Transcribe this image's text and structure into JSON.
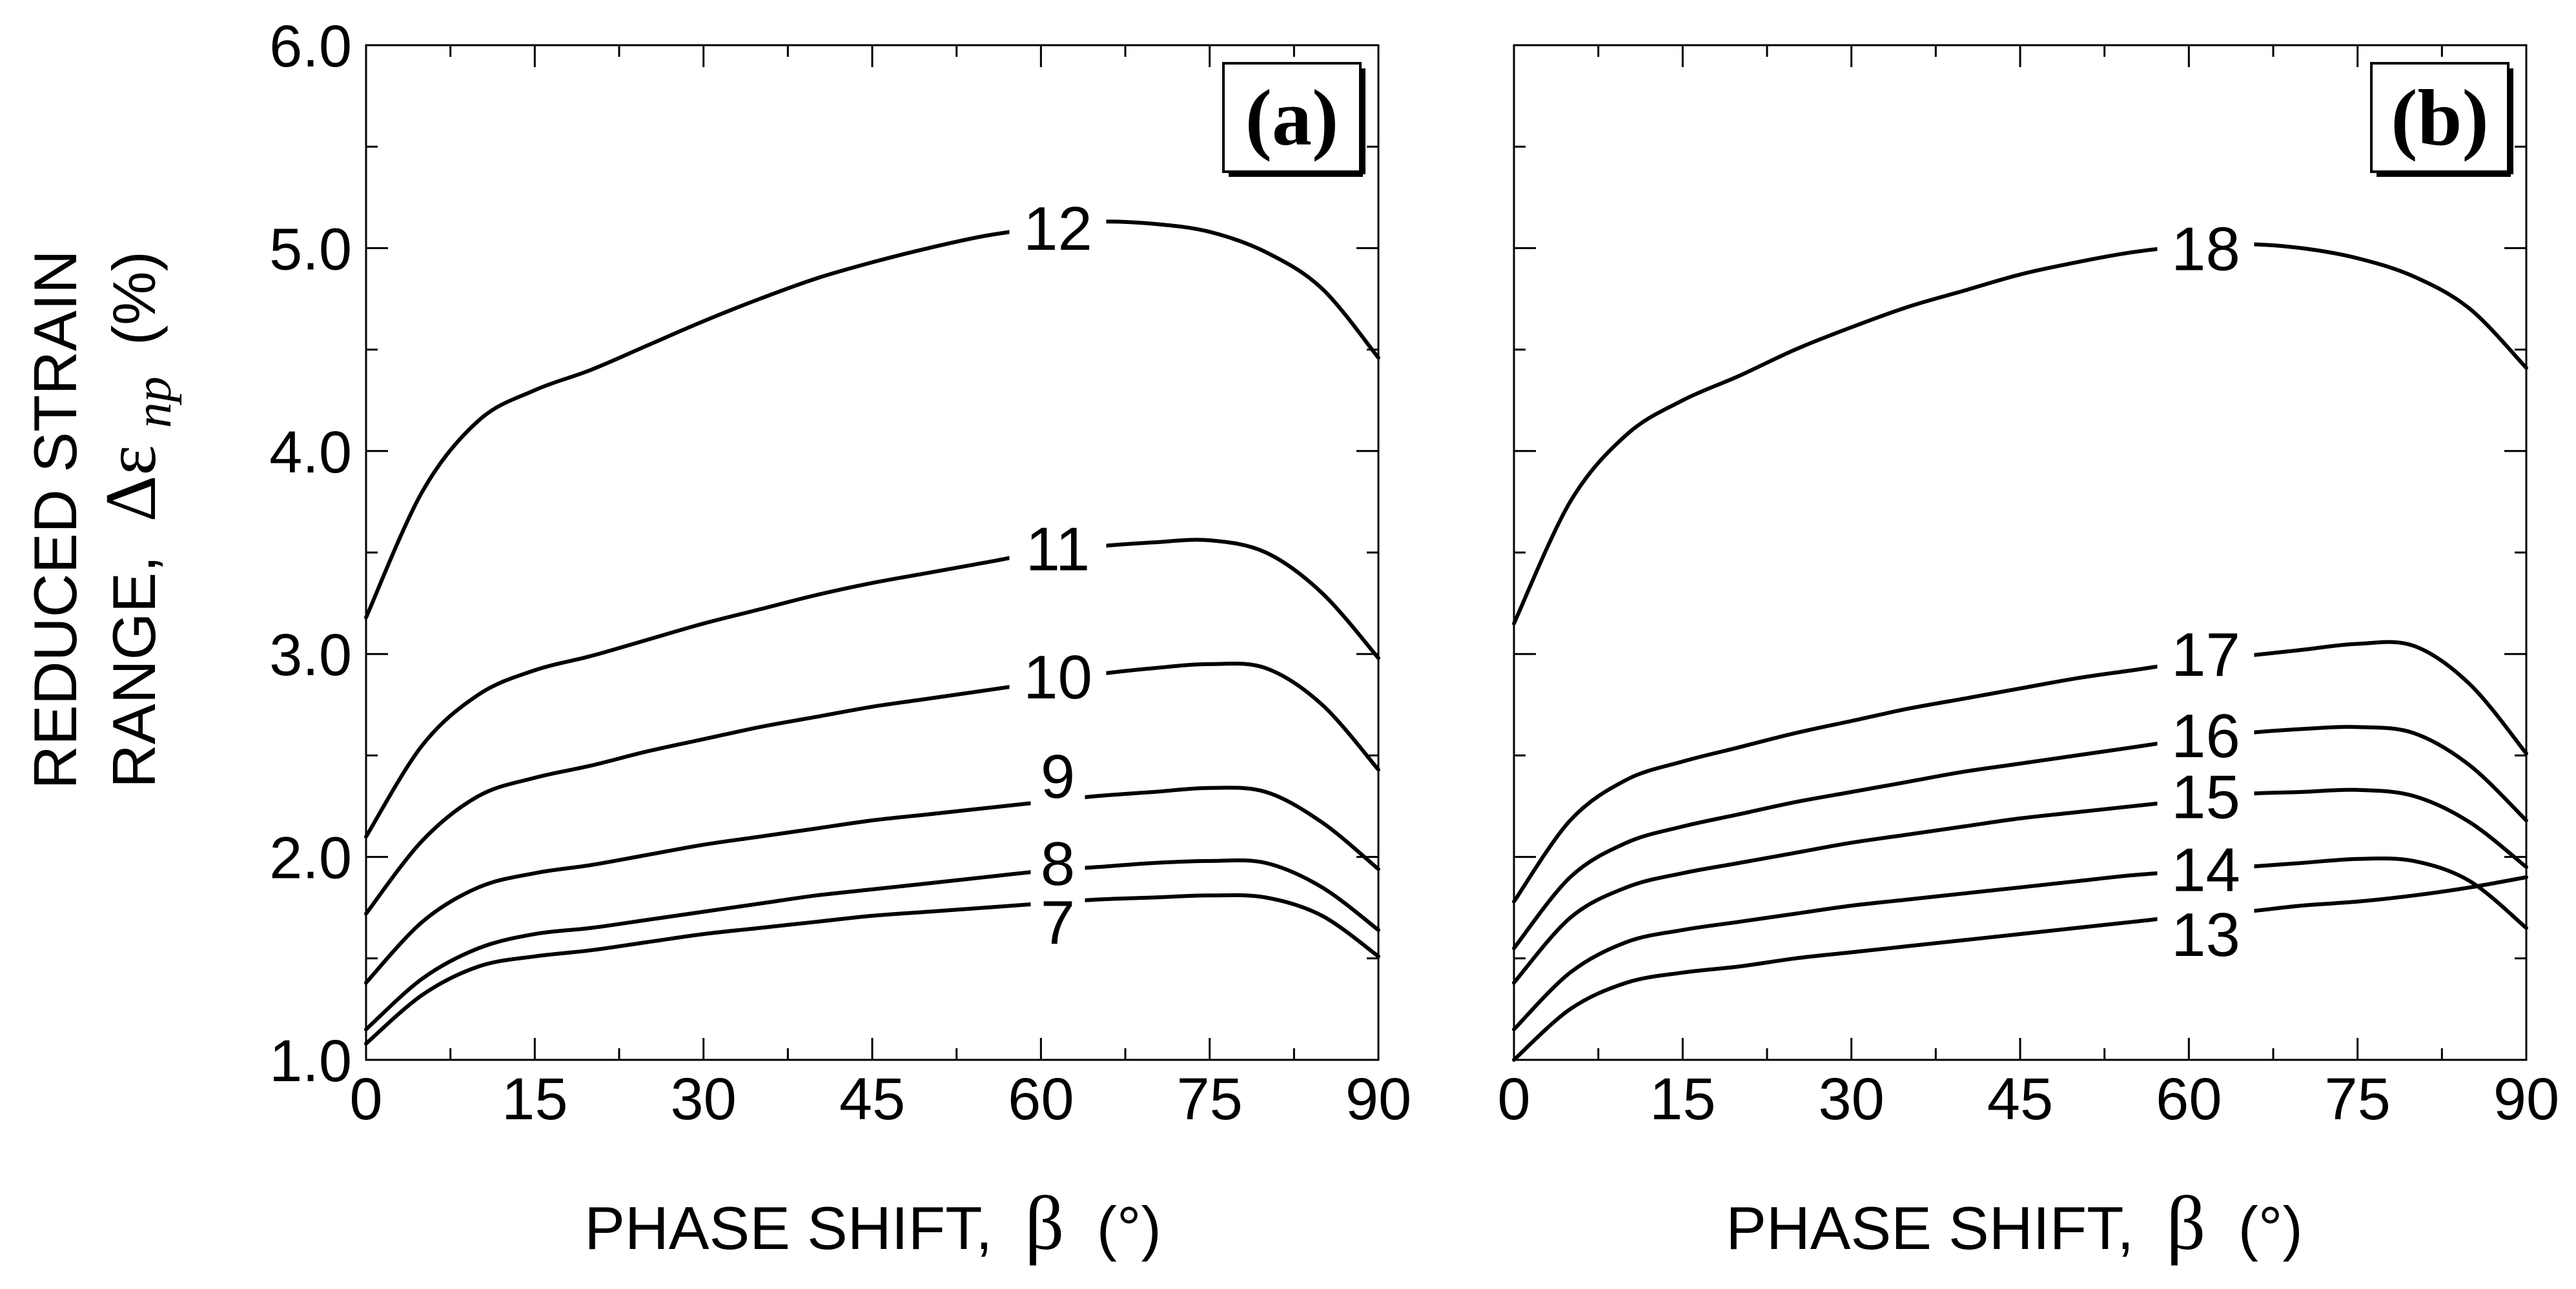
{
  "chart_data": [
    {
      "id": "a",
      "type": "line",
      "panel_label": "(a)",
      "xlabel": "PHASE SHIFT,",
      "xlabel_symbol": "β",
      "xlabel_unit": "(°)",
      "ylabel_line1": "REDUCED STRAIN",
      "ylabel_line2_prefix": "RANGE,",
      "ylabel_symbol": "Δε",
      "ylabel_subscript": "np",
      "ylabel_unit": "(%)",
      "xlim": [
        0,
        90
      ],
      "ylim": [
        1.0,
        6.0
      ],
      "xticks": [
        "0",
        "15",
        "30",
        "45",
        "60",
        "75",
        "90"
      ],
      "yticks": [
        "1.0",
        "2.0",
        "3.0",
        "4.0",
        "5.0",
        "6.0"
      ],
      "x": [
        0,
        5,
        10,
        15,
        20,
        25,
        30,
        35,
        40,
        45,
        50,
        55,
        60,
        65,
        70,
        75,
        80,
        85,
        90
      ],
      "series": [
        {
          "name": "12",
          "values": [
            3.18,
            3.8,
            4.15,
            4.3,
            4.4,
            4.52,
            4.64,
            4.75,
            4.85,
            4.93,
            5.0,
            5.06,
            5.1,
            5.13,
            5.12,
            5.08,
            4.98,
            4.8,
            4.46
          ]
        },
        {
          "name": "11",
          "values": [
            2.1,
            2.55,
            2.8,
            2.92,
            2.99,
            3.07,
            3.15,
            3.22,
            3.29,
            3.35,
            3.4,
            3.45,
            3.5,
            3.53,
            3.55,
            3.56,
            3.5,
            3.3,
            2.98
          ]
        },
        {
          "name": "10",
          "values": [
            1.72,
            2.08,
            2.3,
            2.39,
            2.45,
            2.52,
            2.58,
            2.64,
            2.69,
            2.74,
            2.78,
            2.82,
            2.86,
            2.9,
            2.93,
            2.95,
            2.93,
            2.75,
            2.43
          ]
        },
        {
          "name": "9",
          "values": [
            1.38,
            1.68,
            1.85,
            1.92,
            1.96,
            2.01,
            2.06,
            2.1,
            2.14,
            2.18,
            2.21,
            2.24,
            2.27,
            2.3,
            2.32,
            2.34,
            2.32,
            2.17,
            1.94
          ]
        },
        {
          "name": "8",
          "values": [
            1.15,
            1.4,
            1.55,
            1.62,
            1.65,
            1.69,
            1.73,
            1.77,
            1.81,
            1.84,
            1.87,
            1.9,
            1.93,
            1.95,
            1.97,
            1.98,
            1.97,
            1.85,
            1.64
          ]
        },
        {
          "name": "7",
          "values": [
            1.08,
            1.32,
            1.46,
            1.51,
            1.54,
            1.58,
            1.62,
            1.65,
            1.68,
            1.71,
            1.73,
            1.75,
            1.77,
            1.79,
            1.8,
            1.81,
            1.8,
            1.71,
            1.51
          ]
        }
      ],
      "label_positions": [
        {
          "series": "12",
          "x": 61.5,
          "y": 5.1
        },
        {
          "series": "11",
          "x": 61.5,
          "y": 3.52
        },
        {
          "series": "10",
          "x": 61.5,
          "y": 2.89
        },
        {
          "series": "9",
          "x": 61.5,
          "y": 2.4
        },
        {
          "series": "8",
          "x": 61.5,
          "y": 1.97
        },
        {
          "series": "7",
          "x": 61.5,
          "y": 1.68
        }
      ]
    },
    {
      "id": "b",
      "type": "line",
      "panel_label": "(b)",
      "xlabel": "PHASE SHIFT,",
      "xlabel_symbol": "β",
      "xlabel_unit": "(°)",
      "xlim": [
        0,
        90
      ],
      "ylim": [
        1.0,
        6.0
      ],
      "xticks": [
        "0",
        "15",
        "30",
        "45",
        "60",
        "75",
        "90"
      ],
      "x": [
        0,
        5,
        10,
        15,
        20,
        25,
        30,
        35,
        40,
        45,
        50,
        55,
        60,
        65,
        70,
        75,
        80,
        85,
        90
      ],
      "series": [
        {
          "name": "18",
          "values": [
            3.15,
            3.75,
            4.08,
            4.25,
            4.37,
            4.5,
            4.61,
            4.71,
            4.79,
            4.87,
            4.93,
            4.98,
            5.01,
            5.02,
            5.0,
            4.95,
            4.86,
            4.7,
            4.41
          ]
        },
        {
          "name": "17",
          "values": [
            1.78,
            2.18,
            2.38,
            2.47,
            2.54,
            2.61,
            2.67,
            2.73,
            2.78,
            2.83,
            2.88,
            2.92,
            2.96,
            2.99,
            3.02,
            3.05,
            3.04,
            2.85,
            2.51
          ]
        },
        {
          "name": "16",
          "values": [
            1.55,
            1.9,
            2.07,
            2.15,
            2.21,
            2.27,
            2.32,
            2.37,
            2.42,
            2.46,
            2.5,
            2.54,
            2.58,
            2.61,
            2.63,
            2.64,
            2.61,
            2.45,
            2.18
          ]
        },
        {
          "name": "15",
          "values": [
            1.38,
            1.7,
            1.85,
            1.92,
            1.97,
            2.02,
            2.07,
            2.11,
            2.15,
            2.19,
            2.22,
            2.25,
            2.28,
            2.31,
            2.32,
            2.33,
            2.3,
            2.17,
            1.95
          ]
        },
        {
          "name": "14",
          "values": [
            1.15,
            1.43,
            1.58,
            1.64,
            1.68,
            1.72,
            1.76,
            1.79,
            1.82,
            1.85,
            1.88,
            1.91,
            1.93,
            1.95,
            1.97,
            1.99,
            1.98,
            1.88,
            1.65
          ]
        },
        {
          "name": "13",
          "values": [
            1.0,
            1.25,
            1.38,
            1.43,
            1.46,
            1.5,
            1.53,
            1.56,
            1.59,
            1.62,
            1.65,
            1.68,
            1.71,
            1.73,
            1.76,
            1.78,
            1.81,
            1.85,
            1.9
          ]
        }
      ],
      "label_positions": [
        {
          "series": "18",
          "x": 61.5,
          "y": 5.0
        },
        {
          "series": "17",
          "x": 61.5,
          "y": 3.0
        },
        {
          "series": "16",
          "x": 61.5,
          "y": 2.6
        },
        {
          "series": "15",
          "x": 61.5,
          "y": 2.3
        },
        {
          "series": "14",
          "x": 61.5,
          "y": 1.94
        },
        {
          "series": "13",
          "x": 61.5,
          "y": 1.62
        }
      ]
    }
  ]
}
